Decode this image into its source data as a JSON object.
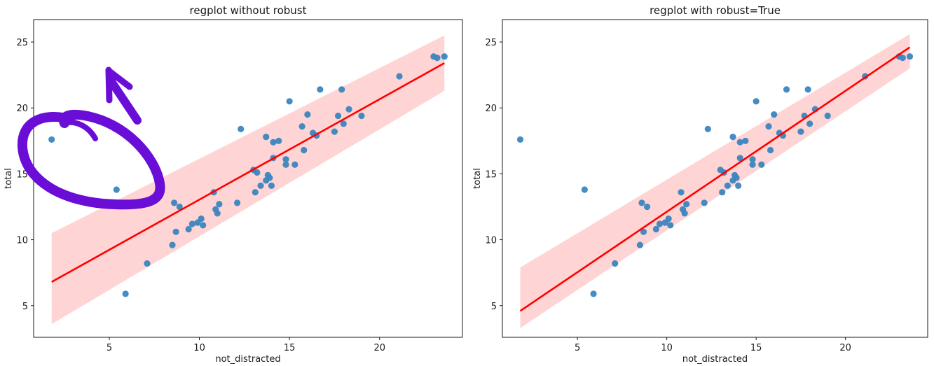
{
  "chart_data": [
    {
      "type": "scatter",
      "title": "regplot without robust",
      "xlabel": "not_distracted",
      "ylabel": "total",
      "xlim": [
        0.8,
        24.6
      ],
      "ylim": [
        2.6,
        26.7
      ],
      "xticks": [
        5,
        10,
        15,
        20
      ],
      "yticks": [
        5,
        10,
        15,
        20,
        25
      ],
      "grid": false,
      "points": [
        [
          1.8,
          17.6
        ],
        [
          5.4,
          13.8
        ],
        [
          5.9,
          5.9
        ],
        [
          7.1,
          8.2
        ],
        [
          8.5,
          9.6
        ],
        [
          8.6,
          12.8
        ],
        [
          8.7,
          10.6
        ],
        [
          8.9,
          12.5
        ],
        [
          9.4,
          10.8
        ],
        [
          9.6,
          11.2
        ],
        [
          9.9,
          11.3
        ],
        [
          10.1,
          11.6
        ],
        [
          10.2,
          11.1
        ],
        [
          10.8,
          13.6
        ],
        [
          10.9,
          12.3
        ],
        [
          11.0,
          12.0
        ],
        [
          11.1,
          12.7
        ],
        [
          12.1,
          12.8
        ],
        [
          12.3,
          18.4
        ],
        [
          13.0,
          15.3
        ],
        [
          13.1,
          13.6
        ],
        [
          13.2,
          15.1
        ],
        [
          13.4,
          14.1
        ],
        [
          13.7,
          17.8
        ],
        [
          13.7,
          14.5
        ],
        [
          13.8,
          14.9
        ],
        [
          13.9,
          14.7
        ],
        [
          14.0,
          14.1
        ],
        [
          14.1,
          16.2
        ],
        [
          14.1,
          17.4
        ],
        [
          14.4,
          17.5
        ],
        [
          14.8,
          15.7
        ],
        [
          14.8,
          16.1
        ],
        [
          15.0,
          20.5
        ],
        [
          15.3,
          15.7
        ],
        [
          15.7,
          18.6
        ],
        [
          15.8,
          16.8
        ],
        [
          16.0,
          19.5
        ],
        [
          16.3,
          18.1
        ],
        [
          16.5,
          17.9
        ],
        [
          16.7,
          21.4
        ],
        [
          17.5,
          18.2
        ],
        [
          17.7,
          19.4
        ],
        [
          17.9,
          21.4
        ],
        [
          18.0,
          18.8
        ],
        [
          18.3,
          19.9
        ],
        [
          19.0,
          19.4
        ],
        [
          21.1,
          22.4
        ],
        [
          23.0,
          23.9
        ],
        [
          23.2,
          23.8
        ],
        [
          23.6,
          23.9
        ]
      ],
      "fit_line": {
        "x": [
          1.8,
          23.6
        ],
        "y": [
          6.8,
          23.4
        ]
      },
      "ci_band": {
        "x": [
          1.8,
          23.6
        ],
        "lower": [
          3.6,
          21.3
        ],
        "upper": [
          10.5,
          25.5
        ]
      },
      "point_color": "#3a86c0",
      "line_color": "#ff0000",
      "band_color": "#ffcccc"
    },
    {
      "type": "scatter",
      "title": "regplot with robust=True",
      "xlabel": "not_distracted",
      "ylabel": "total",
      "xlim": [
        0.8,
        24.6
      ],
      "ylim": [
        2.6,
        26.7
      ],
      "xticks": [
        5,
        10,
        15,
        20
      ],
      "yticks": [
        5,
        10,
        15,
        20,
        25
      ],
      "grid": false,
      "points": [
        [
          1.8,
          17.6
        ],
        [
          5.4,
          13.8
        ],
        [
          5.9,
          5.9
        ],
        [
          7.1,
          8.2
        ],
        [
          8.5,
          9.6
        ],
        [
          8.6,
          12.8
        ],
        [
          8.7,
          10.6
        ],
        [
          8.9,
          12.5
        ],
        [
          9.4,
          10.8
        ],
        [
          9.6,
          11.2
        ],
        [
          9.9,
          11.3
        ],
        [
          10.1,
          11.6
        ],
        [
          10.2,
          11.1
        ],
        [
          10.8,
          13.6
        ],
        [
          10.9,
          12.3
        ],
        [
          11.0,
          12.0
        ],
        [
          11.1,
          12.7
        ],
        [
          12.1,
          12.8
        ],
        [
          12.3,
          18.4
        ],
        [
          13.0,
          15.3
        ],
        [
          13.1,
          13.6
        ],
        [
          13.2,
          15.1
        ],
        [
          13.4,
          14.1
        ],
        [
          13.7,
          17.8
        ],
        [
          13.7,
          14.5
        ],
        [
          13.8,
          14.9
        ],
        [
          13.9,
          14.7
        ],
        [
          14.0,
          14.1
        ],
        [
          14.1,
          16.2
        ],
        [
          14.1,
          17.4
        ],
        [
          14.4,
          17.5
        ],
        [
          14.8,
          15.7
        ],
        [
          14.8,
          16.1
        ],
        [
          15.0,
          20.5
        ],
        [
          15.3,
          15.7
        ],
        [
          15.7,
          18.6
        ],
        [
          15.8,
          16.8
        ],
        [
          16.0,
          19.5
        ],
        [
          16.3,
          18.1
        ],
        [
          16.5,
          17.9
        ],
        [
          16.7,
          21.4
        ],
        [
          17.5,
          18.2
        ],
        [
          17.7,
          19.4
        ],
        [
          17.9,
          21.4
        ],
        [
          18.0,
          18.8
        ],
        [
          18.3,
          19.9
        ],
        [
          19.0,
          19.4
        ],
        [
          21.1,
          22.4
        ],
        [
          23.0,
          23.9
        ],
        [
          23.2,
          23.8
        ],
        [
          23.6,
          23.9
        ]
      ],
      "fit_line": {
        "x": [
          1.8,
          23.6
        ],
        "y": [
          4.6,
          24.6
        ]
      },
      "ci_band": {
        "x": [
          1.8,
          23.6
        ],
        "lower": [
          3.3,
          23.0
        ],
        "upper": [
          7.9,
          25.6
        ]
      },
      "point_color": "#3a86c0",
      "line_color": "#ff0000",
      "band_color": "#ffcccc"
    }
  ],
  "annotation": {
    "description": "hand-drawn purple circle and arrow",
    "color": "#6a0dd6"
  }
}
